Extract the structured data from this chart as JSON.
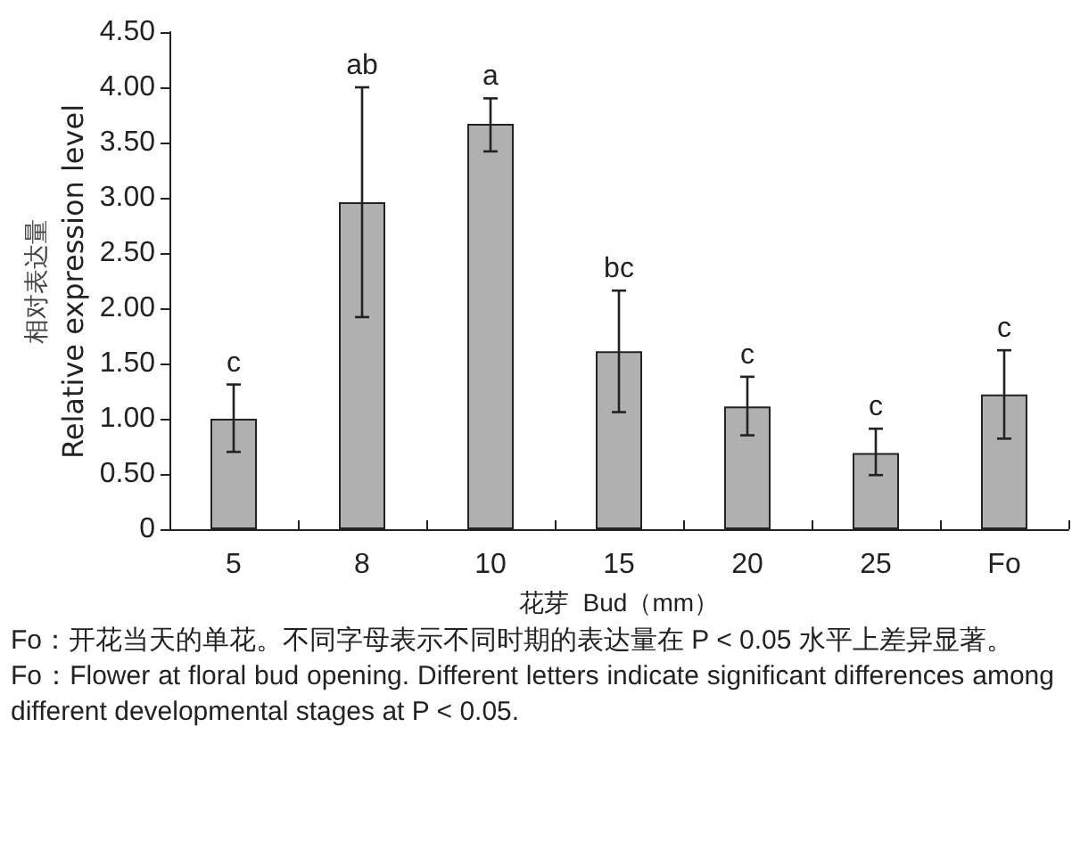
{
  "chart_data": {
    "type": "bar",
    "ylabel": "相对表达量\nRelative expression level",
    "xlabel": "花芽  Bud（mm）",
    "categories": [
      "5",
      "8",
      "10",
      "15",
      "20",
      "25",
      "Fo"
    ],
    "values": [
      1.0,
      2.96,
      3.67,
      1.61,
      1.11,
      0.69,
      1.22
    ],
    "errors": [
      [
        0.7,
        1.31
      ],
      [
        1.92,
        4.0
      ],
      [
        3.42,
        3.9
      ],
      [
        1.06,
        2.16
      ],
      [
        0.85,
        1.38
      ],
      [
        0.49,
        0.91
      ],
      [
        0.82,
        1.62
      ]
    ],
    "color": "#b0b0b0",
    "ylim": [
      0,
      4.5
    ],
    "yticks": [
      0,
      {
        "value": 0.5,
        "label": "0.50"
      },
      {
        "value": 1,
        "label": "1.00"
      },
      {
        "value": 1.5,
        "label": "1.50"
      },
      {
        "value": 2,
        "label": "2.00"
      },
      {
        "value": 2.5,
        "label": "2.50"
      },
      {
        "value": 3,
        "label": "3.00"
      },
      {
        "value": 3.5,
        "label": "3.50"
      },
      {
        "value": 4,
        "label": "4.00"
      },
      {
        "value": 4.5,
        "label": "4.50"
      }
    ],
    "grid": false,
    "annotations": [
      {
        "text": "c",
        "x": "5",
        "y": 1.31
      },
      {
        "text": "ab",
        "x": "8",
        "y": 4.0
      },
      {
        "text": "a",
        "x": "10",
        "y": 3.9
      },
      {
        "text": "bc",
        "x": "15",
        "y": 2.16
      },
      {
        "text": "c",
        "x": "20",
        "y": 1.38
      },
      {
        "text": "c",
        "x": "25",
        "y": 0.91
      },
      {
        "text": "c",
        "x": "Fo",
        "y": 1.62
      },
      "Fo：开花当天的单花。不同字母表示不同时期的表达量在 P < 0.05 水平上差异显著。",
      "Fo：Flower at floral bud opening. Different letters indicate significant differences among different developmental stages at P < 0.05."
    ]
  }
}
